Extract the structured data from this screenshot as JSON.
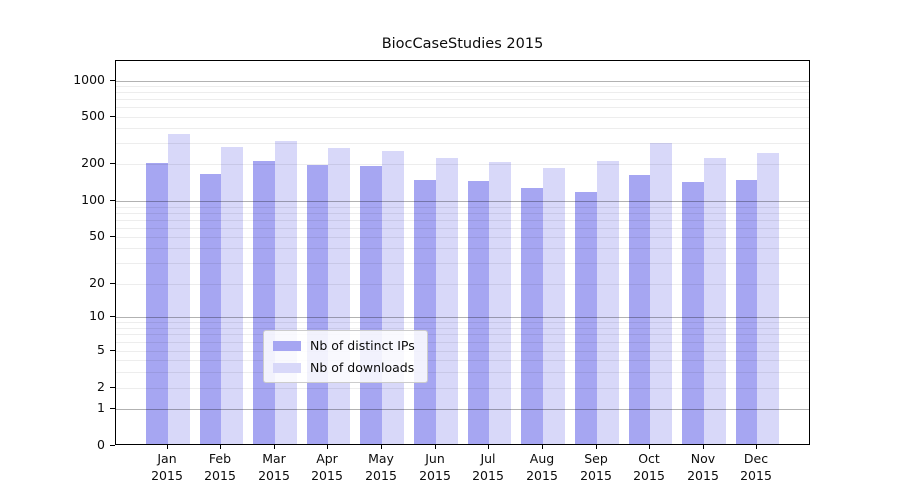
{
  "title": "BiocCaseStudies 2015",
  "colors": {
    "ips_bar": "#a6a6f2",
    "downloads_bar": "#d8d8f9",
    "grid_major": "rgba(0,0,0,0.30)",
    "grid_minor": "rgba(0,0,0,0.07)",
    "axis": "#000000"
  },
  "y_axis": {
    "tick_labels": [
      "1000",
      "500",
      "200",
      "100",
      "50",
      "20",
      "10",
      "5",
      "2",
      "1",
      "0"
    ]
  },
  "x_axis": {
    "months": [
      "Jan",
      "Feb",
      "Mar",
      "Apr",
      "May",
      "Jun",
      "Jul",
      "Aug",
      "Sep",
      "Oct",
      "Nov",
      "Dec"
    ],
    "year": "2015"
  },
  "legend": {
    "items": [
      {
        "label": "Nb of distinct IPs",
        "color_key": "ips_bar"
      },
      {
        "label": "Nb of downloads",
        "color_key": "downloads_bar"
      }
    ]
  },
  "chart_data": {
    "type": "bar",
    "title": "BiocCaseStudies 2015",
    "categories": [
      "Jan 2015",
      "Feb 2015",
      "Mar 2015",
      "Apr 2015",
      "May 2015",
      "Jun 2015",
      "Jul 2015",
      "Aug 2015",
      "Sep 2015",
      "Oct 2015",
      "Nov 2015",
      "Dec 2015"
    ],
    "series": [
      {
        "name": "Nb of distinct IPs",
        "values": [
          195,
          160,
          205,
          190,
          185,
          142,
          140,
          123,
          114,
          158,
          139,
          144
        ]
      },
      {
        "name": "Nb of downloads",
        "values": [
          348,
          270,
          302,
          264,
          250,
          217,
          200,
          178,
          204,
          290,
          216,
          240
        ]
      }
    ],
    "yscale": "symlog",
    "y_ticks": [
      0,
      1,
      2,
      5,
      10,
      20,
      50,
      100,
      200,
      500,
      1000
    ],
    "y_minor_gridlines": [
      900,
      800,
      700,
      600,
      400,
      300,
      90,
      80,
      70,
      60,
      40,
      30,
      9,
      8,
      7,
      6,
      4,
      3
    ],
    "ylim": [
      0,
      1450
    ],
    "xlabel": "",
    "ylabel": "",
    "legend_position": "lower center",
    "grid": "horizontal, log minor gridlines, decade lines darker, drawn above bars"
  }
}
